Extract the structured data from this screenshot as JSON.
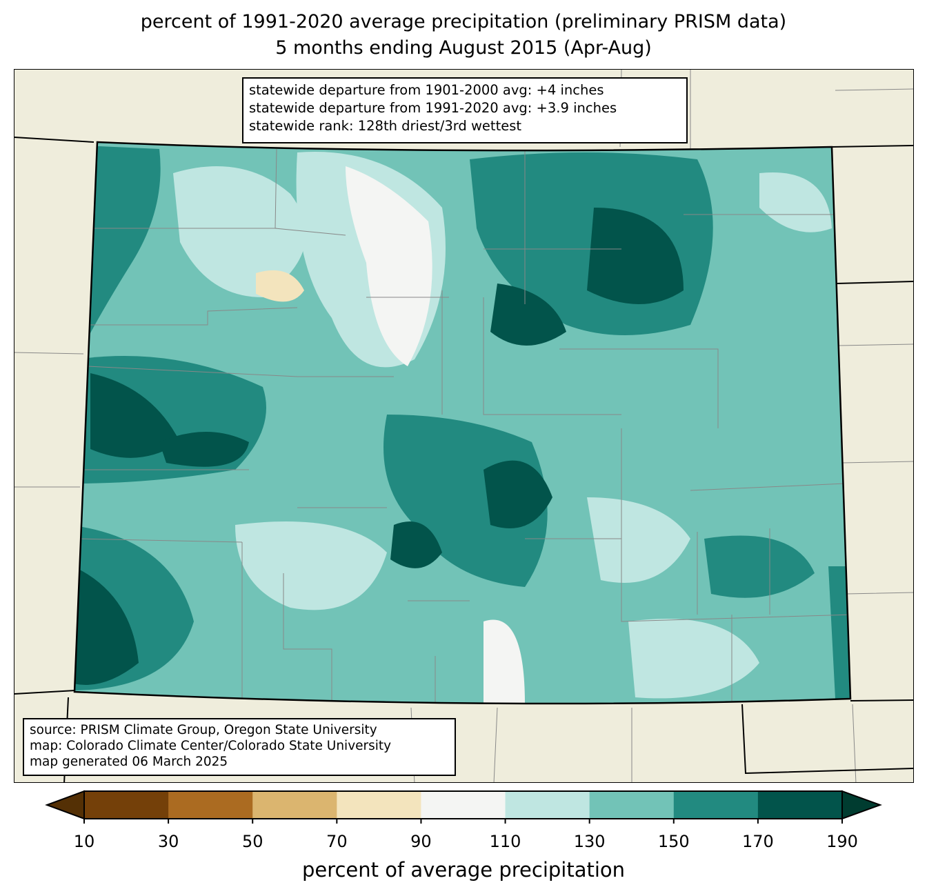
{
  "title": {
    "line1": "percent of 1991-2020 average precipitation (preliminary PRISM data)",
    "line2": "5 months ending August 2015 (Apr-Aug)"
  },
  "stats": {
    "line1": "statewide departure from 1901-2000 avg: +4 inches",
    "line2": "statewide departure from 1991-2020 avg: +3.9 inches",
    "line3": "statewide rank: 128th driest/3rd wettest"
  },
  "credits": {
    "line1": "source: PRISM Climate Group, Oregon State University",
    "line2": "map: Colorado Climate Center/Colorado State University",
    "line3": "map generated 06 March 2025"
  },
  "colorbar": {
    "label": "percent of average precipitation",
    "ticks": [
      "10",
      "30",
      "50",
      "70",
      "90",
      "110",
      "130",
      "150",
      "170",
      "190"
    ],
    "colors": [
      "#744009",
      "#ab6b21",
      "#dbb56f",
      "#f3e4bd",
      "#f4f5f3",
      "#bfe6e1",
      "#72c3b7",
      "#228a80",
      "#02544b"
    ],
    "under": "#543005",
    "over": "#003c30"
  }
}
